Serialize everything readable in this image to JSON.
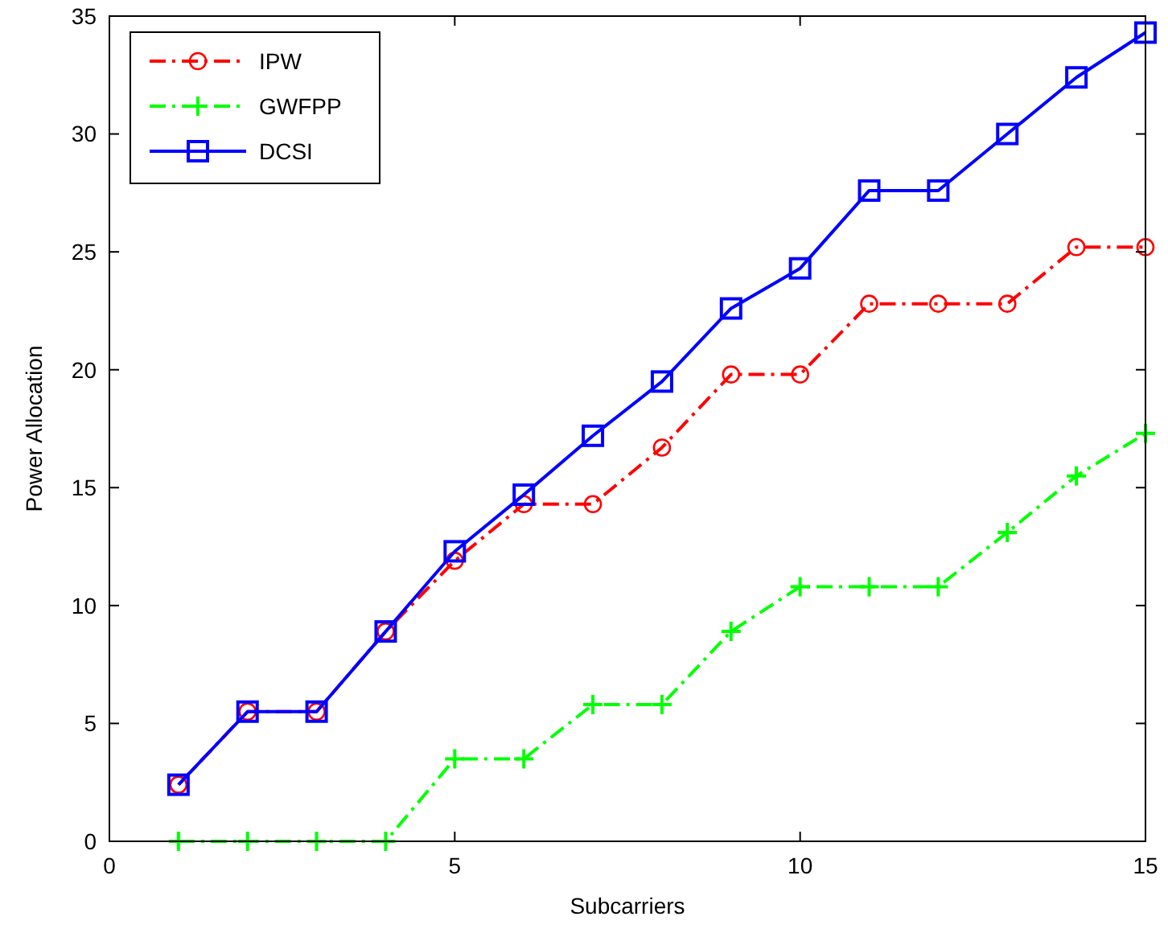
{
  "chart_data": {
    "type": "line",
    "xlabel": "Subcarriers",
    "ylabel": "Power Allocation",
    "x": [
      1,
      2,
      3,
      4,
      5,
      6,
      7,
      8,
      9,
      10,
      11,
      12,
      13,
      14,
      15
    ],
    "series": [
      {
        "name": "IPW",
        "color": "#ff0000",
        "marker": "circle",
        "line_style": "dashed",
        "values": [
          2.4,
          5.5,
          5.5,
          8.9,
          11.9,
          14.3,
          14.3,
          16.7,
          19.8,
          19.8,
          22.8,
          22.8,
          22.8,
          25.2,
          25.2
        ]
      },
      {
        "name": "GWFPP",
        "color": "#00ff00",
        "marker": "cross",
        "line_style": "dashed",
        "values": [
          0,
          0,
          0,
          0,
          3.5,
          3.5,
          5.8,
          5.8,
          8.9,
          10.8,
          10.8,
          10.8,
          13.1,
          15.5,
          17.3
        ]
      },
      {
        "name": "DCSI",
        "color": "#0000ff",
        "marker": "square",
        "line_style": "solid",
        "values": [
          2.4,
          5.5,
          5.5,
          8.9,
          12.3,
          14.7,
          17.2,
          19.5,
          22.6,
          24.3,
          27.6,
          27.6,
          30.0,
          32.4,
          34.3
        ]
      }
    ],
    "xlim": [
      0,
      15
    ],
    "xticks": [
      0,
      5,
      10,
      15
    ],
    "ylim": [
      0,
      35
    ],
    "yticks": [
      0,
      5,
      10,
      15,
      20,
      25,
      30,
      35
    ],
    "grid": false,
    "legend": "top left"
  }
}
